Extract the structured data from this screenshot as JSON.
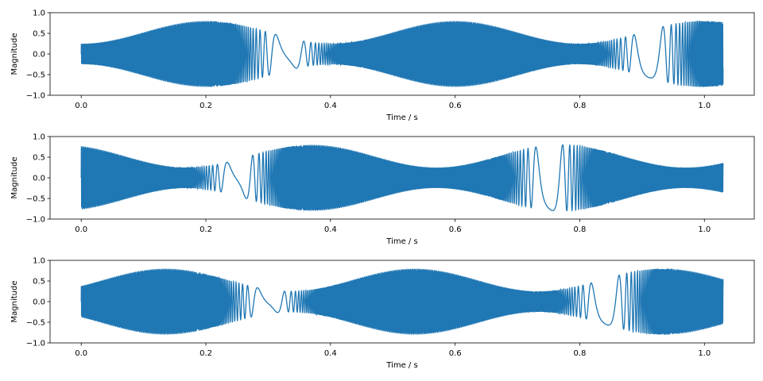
{
  "chart_data": [
    {
      "type": "line",
      "title": "",
      "xlabel": "Time / s",
      "ylabel": "Magnitude",
      "xlim": [
        -0.05,
        1.08
      ],
      "ylim": [
        -1.0,
        1.0
      ],
      "x_ticks": [
        "0.0",
        "0.2",
        "0.4",
        "0.6",
        "0.8",
        "1.0"
      ],
      "y_ticks": [
        "1.0",
        "0.5",
        "0.0",
        "−0.5",
        "−1.0"
      ],
      "series_color": "#1f77b4",
      "signal": {
        "t_start": 0.0,
        "t_end": 1.03,
        "envelope_period_s": 0.4,
        "envelope_phase_s": 0.0,
        "envelope_min": 0.25,
        "envelope_max": 0.8,
        "sweep_period_s": 0.58,
        "sweep_phase_s": 0.04,
        "freq_min_hz": 8,
        "freq_max_hz": 1200
      }
    },
    {
      "type": "line",
      "title": "",
      "xlabel": "Time / s",
      "ylabel": "Magnitude",
      "xlim": [
        -0.05,
        1.08
      ],
      "ylim": [
        -1.0,
        1.0
      ],
      "x_ticks": [
        "0.0",
        "0.2",
        "0.4",
        "0.6",
        "0.8",
        "1.0"
      ],
      "y_ticks": [
        "1.0",
        "0.5",
        "0.0",
        "−0.5",
        "−1.0"
      ],
      "series_color": "#1f77b4",
      "signal": {
        "t_start": 0.0,
        "t_end": 1.03,
        "envelope_period_s": 0.4,
        "envelope_phase_s": 0.17,
        "envelope_min": 0.25,
        "envelope_max": 0.8,
        "sweep_period_s": 0.5,
        "sweep_phase_s": 0.0,
        "freq_min_hz": 8,
        "freq_max_hz": 1200
      }
    },
    {
      "type": "line",
      "title": "",
      "xlabel": "Time / s",
      "ylabel": "Magnitude",
      "xlim": [
        -0.05,
        1.08
      ],
      "ylim": [
        -1.0,
        1.0
      ],
      "x_ticks": [
        "0.0",
        "0.2",
        "0.4",
        "0.6",
        "0.8",
        "1.0"
      ],
      "y_ticks": [
        "1.0",
        "0.5",
        "0.0",
        "−0.5",
        "−1.0"
      ],
      "series_color": "#1f77b4",
      "signal": {
        "t_start": 0.0,
        "t_end": 1.03,
        "envelope_period_s": 0.4,
        "envelope_phase_s": 0.335,
        "envelope_min": 0.25,
        "envelope_max": 0.8,
        "sweep_period_s": 0.54,
        "sweep_phase_s": 0.03,
        "freq_min_hz": 8,
        "freq_max_hz": 1200
      }
    }
  ]
}
